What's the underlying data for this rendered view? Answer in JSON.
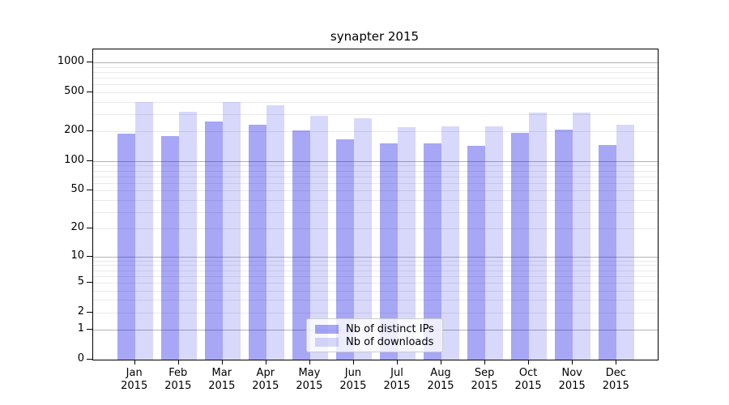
{
  "chart_data": {
    "type": "bar",
    "title": "synapter 2015",
    "scale": "log1p",
    "year": "2015",
    "categories": [
      "Jan",
      "Feb",
      "Mar",
      "Apr",
      "May",
      "Jun",
      "Jul",
      "Aug",
      "Sep",
      "Oct",
      "Nov",
      "Dec"
    ],
    "series": [
      {
        "name": "Nb of distinct IPs",
        "color": "rgba(10,10,230,0.36)",
        "values": [
          190,
          180,
          255,
          233,
          204,
          166,
          153,
          152,
          142,
          193,
          211,
          145
        ]
      },
      {
        "name": "Nb of downloads",
        "color": "rgba(10,10,230,0.16)",
        "values": [
          400,
          320,
          395,
          370,
          290,
          273,
          221,
          224,
          224,
          314,
          310,
          236
        ]
      }
    ],
    "y_ticks": [
      0,
      1,
      2,
      5,
      10,
      20,
      50,
      100,
      200,
      500,
      1000
    ],
    "ylim": [
      0,
      1320
    ],
    "xlabel": "",
    "ylabel": "",
    "grid": {
      "major_values": [
        1,
        10,
        100,
        1000
      ],
      "minor_decades": [
        1,
        10,
        100
      ],
      "major_color": "#b3b3b3",
      "minor_color": "#e9e9e9"
    },
    "legend_position": "lower center",
    "axis_color": "#000000"
  }
}
